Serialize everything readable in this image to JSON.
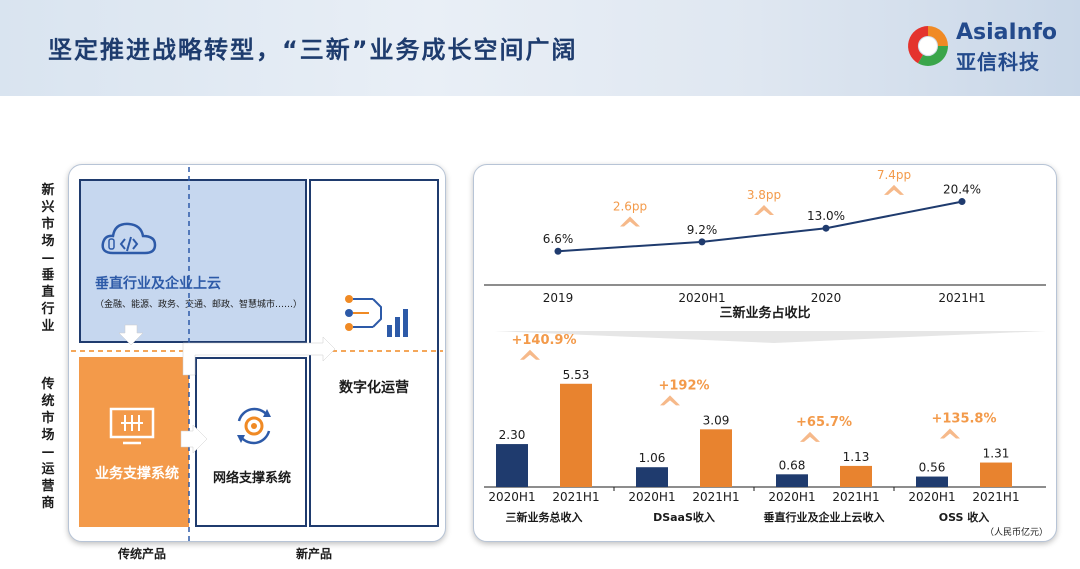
{
  "header": {
    "title": "坚定推进战略转型，“三新”业务成长空间广阔"
  },
  "logo": {
    "en": "AsiaInfo",
    "cn": "亚信科技"
  },
  "matrix": {
    "row_top_label": "新兴市场—垂直行业",
    "row_bottom_label": "传统市场—运营商",
    "col_left_label": "传统产品",
    "col_right_label": "新产品",
    "cloud_title": "垂直行业及企业上云",
    "cloud_subtitle": "（金融、能源、政务、交通、邮政、智慧城市……）",
    "digital_title": "数字化运营",
    "bss_title": "业务支撑系统",
    "oss_title": "网络支撑系统",
    "colors": {
      "blue_box": "#c6d7ef",
      "orange_box": "#f39a4a",
      "navy": "#1f3b6e"
    },
    "icons": [
      "cloud-code-icon",
      "circuit-chart-icon",
      "monitor-icon",
      "gear-cycle-icon"
    ]
  },
  "chart_data": [
    {
      "type": "line",
      "title": "三新业务占收比",
      "x": [
        "2019",
        "2020H1",
        "2020",
        "2021H1"
      ],
      "series": [
        {
          "values": [
            6.6,
            9.2,
            13.0,
            20.4
          ]
        }
      ],
      "data_labels": [
        "6.6%",
        "9.2%",
        "13.0%",
        "20.4%"
      ],
      "annotations": [
        "2.6pp",
        "3.8pp",
        "7.4pp"
      ],
      "colors": {
        "line": "#1f3b6e",
        "annotation": "#f39a4a"
      }
    },
    {
      "type": "bar",
      "unit_note": "（人民币亿元）",
      "groups": [
        {
          "label": "三新业务总收入",
          "categories": [
            "2020H1",
            "2021H1"
          ],
          "values": [
            2.3,
            5.53
          ],
          "value_labels": [
            "2.30",
            "5.53"
          ],
          "growth": "+140.9%"
        },
        {
          "label": "DSaaS收入",
          "categories": [
            "2020H1",
            "2021H1"
          ],
          "values": [
            1.06,
            3.09
          ],
          "value_labels": [
            "1.06",
            "3.09"
          ],
          "growth": "+192%"
        },
        {
          "label": "垂直行业及企业上云收入",
          "categories": [
            "2020H1",
            "2021H1"
          ],
          "values": [
            0.68,
            1.13
          ],
          "value_labels": [
            "0.68",
            "1.13"
          ],
          "growth": "+65.7%"
        },
        {
          "label": "OSS 收入",
          "categories": [
            "2020H1",
            "2021H1"
          ],
          "values": [
            0.56,
            1.31
          ],
          "value_labels": [
            "0.56",
            "1.31"
          ],
          "growth": "+135.8%"
        }
      ],
      "colors": {
        "bar_2020H1": "#1f3b6e",
        "bar_2021H1": "#e8832f",
        "growth": "#f39a4a"
      }
    }
  ]
}
